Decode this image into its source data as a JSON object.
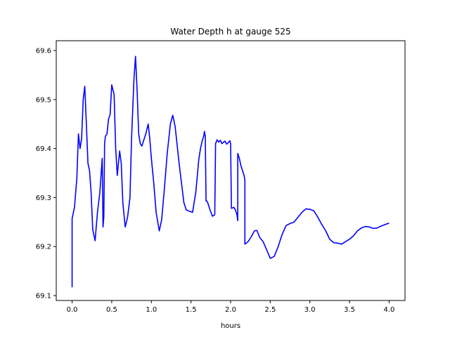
{
  "chart_data": {
    "type": "line",
    "title": "Water Depth h at gauge 525",
    "xlabel": "hours",
    "ylabel": "",
    "xlim": [
      -0.2,
      4.2
    ],
    "ylim": [
      69.09,
      69.62
    ],
    "x_ticks": [
      0.0,
      0.5,
      1.0,
      1.5,
      2.0,
      2.5,
      3.0,
      3.5,
      4.0
    ],
    "x_tick_labels": [
      "0.0",
      "0.5",
      "1.0",
      "1.5",
      "2.0",
      "2.5",
      "3.0",
      "3.5",
      "4.0"
    ],
    "y_ticks": [
      69.1,
      69.2,
      69.3,
      69.4,
      69.5,
      69.6
    ],
    "y_tick_labels": [
      "69.1",
      "69.2",
      "69.3",
      "69.4",
      "69.5",
      "69.6"
    ],
    "grid": false,
    "legend": "none",
    "series": [
      {
        "color": "#0000ff",
        "x": [
          0.0,
          0.0,
          0.03,
          0.06,
          0.08,
          0.1,
          0.12,
          0.14,
          0.16,
          0.18,
          0.2,
          0.22,
          0.24,
          0.26,
          0.29,
          0.32,
          0.35,
          0.38,
          0.39,
          0.4,
          0.41,
          0.42,
          0.44,
          0.46,
          0.48,
          0.5,
          0.53,
          0.55,
          0.57,
          0.6,
          0.62,
          0.64,
          0.67,
          0.7,
          0.73,
          0.75,
          0.78,
          0.8,
          0.82,
          0.84,
          0.86,
          0.88,
          0.9,
          0.93,
          0.96,
          0.98,
          1.0,
          1.03,
          1.06,
          1.1,
          1.13,
          1.16,
          1.2,
          1.24,
          1.27,
          1.3,
          1.33,
          1.35,
          1.38,
          1.41,
          1.44,
          1.48,
          1.52,
          1.56,
          1.6,
          1.62,
          1.64,
          1.66,
          1.67,
          1.68,
          1.69,
          1.69,
          1.71,
          1.74,
          1.77,
          1.8,
          1.81,
          1.81,
          1.83,
          1.85,
          1.87,
          1.89,
          1.91,
          1.93,
          1.95,
          1.97,
          1.99,
          2.0,
          2.01,
          2.01,
          2.04,
          2.06,
          2.08,
          2.09,
          2.09,
          2.11,
          2.13,
          2.15,
          2.17,
          2.18,
          2.18,
          2.22,
          2.26,
          2.3,
          2.33,
          2.37,
          2.41,
          2.45,
          2.5,
          2.55,
          2.6,
          2.65,
          2.7,
          2.75,
          2.8,
          2.85,
          2.9,
          2.95,
          3.0,
          3.05,
          3.1,
          3.15,
          3.2,
          3.25,
          3.3,
          3.35,
          3.4,
          3.45,
          3.5,
          3.55,
          3.6,
          3.65,
          3.7,
          3.75,
          3.8,
          3.85,
          3.9,
          3.95,
          4.0
        ],
        "y": [
          69.117,
          69.257,
          69.28,
          69.34,
          69.43,
          69.4,
          69.42,
          69.5,
          69.527,
          69.45,
          69.37,
          69.355,
          69.31,
          69.235,
          69.212,
          69.27,
          69.31,
          69.38,
          69.24,
          69.26,
          69.41,
          69.425,
          69.43,
          69.46,
          69.47,
          69.53,
          69.51,
          69.4,
          69.345,
          69.395,
          69.37,
          69.29,
          69.24,
          69.26,
          69.3,
          69.42,
          69.54,
          69.588,
          69.52,
          69.43,
          69.41,
          69.405,
          69.415,
          69.43,
          69.45,
          69.42,
          69.38,
          69.33,
          69.27,
          69.232,
          69.255,
          69.31,
          69.39,
          69.45,
          69.468,
          69.445,
          69.4,
          69.37,
          69.33,
          69.29,
          69.275,
          69.272,
          69.27,
          69.31,
          69.38,
          69.4,
          69.415,
          69.425,
          69.435,
          69.425,
          69.293,
          69.295,
          69.29,
          69.275,
          69.262,
          69.265,
          69.41,
          69.41,
          69.418,
          69.413,
          69.417,
          69.41,
          69.413,
          69.415,
          69.409,
          69.412,
          69.416,
          69.41,
          69.28,
          69.278,
          69.28,
          69.275,
          69.265,
          69.253,
          69.39,
          69.38,
          69.365,
          69.355,
          69.345,
          69.335,
          69.205,
          69.21,
          69.22,
          69.232,
          69.233,
          69.218,
          69.21,
          69.195,
          69.176,
          69.18,
          69.2,
          69.225,
          69.243,
          69.247,
          69.25,
          69.26,
          69.27,
          69.277,
          69.276,
          69.273,
          69.26,
          69.245,
          69.232,
          69.215,
          69.208,
          69.207,
          69.205,
          69.21,
          69.215,
          69.222,
          69.232,
          69.238,
          69.241,
          69.24,
          69.237,
          69.238,
          69.242,
          69.245,
          69.248
        ]
      }
    ]
  }
}
